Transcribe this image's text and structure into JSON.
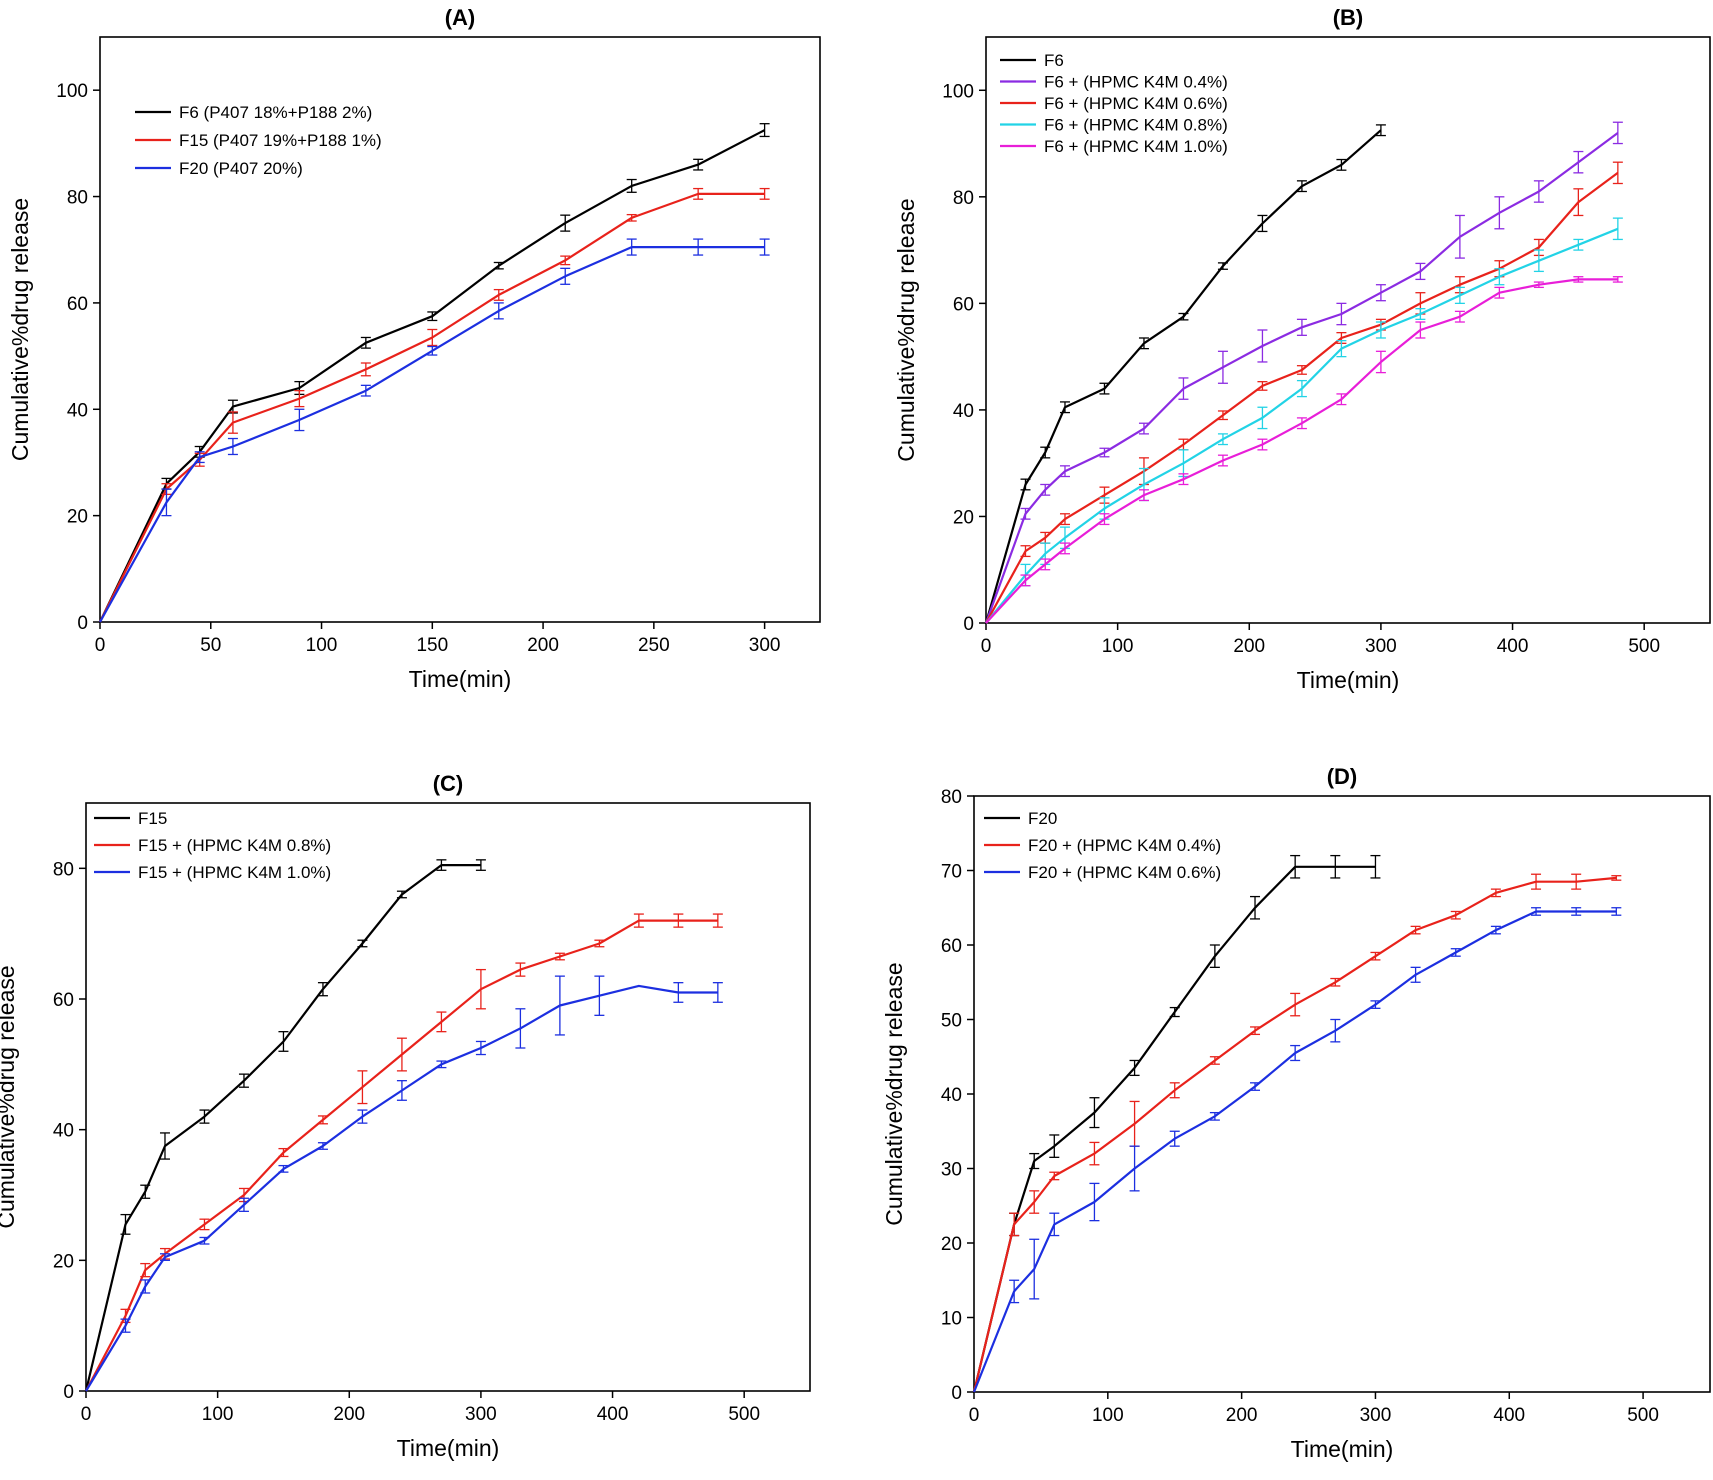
{
  "chart_data": [
    {
      "type": "line",
      "title": "(A)",
      "xlabel": "Time(min)",
      "ylabel": "Cumulative%drug release",
      "xlim": [
        0,
        325
      ],
      "ylim": [
        0,
        110
      ],
      "xticks": [
        0,
        50,
        100,
        150,
        200,
        250,
        300
      ],
      "yticks": [
        0,
        20,
        40,
        60,
        80,
        100
      ],
      "x_tick_labels": [
        "0",
        "50",
        "100",
        "150",
        "200",
        "250",
        "300"
      ],
      "y_tick_labels": [
        "0",
        "20",
        "40",
        "60",
        "80",
        "100"
      ],
      "legend_position": "top-left",
      "series": [
        {
          "name": "F6 (P407 18%+P188 2%)",
          "color": "#000000",
          "x": [
            0,
            30,
            45,
            60,
            90,
            120,
            150,
            180,
            210,
            240,
            270,
            300
          ],
          "y": [
            0,
            26,
            32,
            40.5,
            44,
            52.5,
            57.5,
            67,
            75,
            82,
            86,
            92.5
          ],
          "err": [
            0,
            1.0,
            1.0,
            1.2,
            1.2,
            1.0,
            0.8,
            0.6,
            1.5,
            1.2,
            1.0,
            1.2
          ]
        },
        {
          "name": "F15 (P407 19%+P188 1%)",
          "color": "#e8221b",
          "x": [
            0,
            30,
            45,
            60,
            90,
            120,
            150,
            180,
            210,
            240,
            270,
            300
          ],
          "y": [
            0,
            25,
            30.5,
            37.5,
            42,
            47.5,
            53.5,
            61.5,
            68,
            76,
            80.5,
            80.5
          ],
          "err": [
            0,
            1.0,
            1.2,
            2.0,
            1.5,
            1.2,
            1.5,
            1.0,
            0.8,
            0.6,
            1.0,
            1.0
          ]
        },
        {
          "name": "F20 (P407 20%)",
          "color": "#1c2fe0",
          "x": [
            0,
            30,
            45,
            60,
            90,
            120,
            150,
            180,
            210,
            240,
            270,
            300
          ],
          "y": [
            0,
            22.5,
            31,
            33,
            38,
            43.5,
            51,
            58.5,
            65,
            70.5,
            70.5,
            70.5
          ],
          "err": [
            0,
            2.5,
            1.0,
            1.5,
            2.0,
            1.0,
            0.8,
            1.5,
            1.5,
            1.5,
            1.5,
            1.5
          ]
        }
      ]
    },
    {
      "type": "line",
      "title": "(B)",
      "xlabel": "Time(min)",
      "ylabel": "Cumulative%drug release",
      "xlim": [
        0,
        550
      ],
      "ylim": [
        0,
        110
      ],
      "xticks": [
        0,
        100,
        200,
        300,
        400,
        500
      ],
      "yticks": [
        0,
        20,
        40,
        60,
        80,
        100
      ],
      "x_tick_labels": [
        "0",
        "100",
        "200",
        "300",
        "400",
        "500"
      ],
      "y_tick_labels": [
        "0",
        "20",
        "40",
        "60",
        "80",
        "100"
      ],
      "legend_position": "top-left",
      "series": [
        {
          "name": "F6",
          "color": "#000000",
          "x": [
            0,
            30,
            45,
            60,
            90,
            120,
            150,
            180,
            210,
            240,
            270,
            300
          ],
          "y": [
            0,
            26,
            32,
            40.5,
            44,
            52.5,
            57.5,
            67,
            75,
            82,
            86,
            92.5
          ],
          "err": [
            0,
            1.0,
            1.0,
            1.0,
            1.0,
            1.0,
            0.6,
            0.6,
            1.5,
            1.0,
            1.0,
            1.0
          ]
        },
        {
          "name": "F6 + (HPMC K4M 0.4%)",
          "color": "#8b2be2",
          "x": [
            0,
            30,
            45,
            60,
            90,
            120,
            150,
            180,
            210,
            240,
            270,
            300,
            330,
            360,
            390,
            420,
            450,
            480
          ],
          "y": [
            0,
            20.5,
            25,
            28.5,
            32,
            36.5,
            44,
            48,
            52,
            55.5,
            58,
            62,
            66,
            72.5,
            77,
            81,
            86.5,
            92
          ],
          "err": [
            0,
            1.0,
            1.0,
            1.0,
            0.8,
            1.0,
            2.0,
            3.0,
            3.0,
            1.5,
            2.0,
            1.5,
            1.5,
            4.0,
            3.0,
            2.0,
            2.0,
            2.0
          ]
        },
        {
          "name": "F6 + (HPMC K4M 0.6%)",
          "color": "#e8221b",
          "x": [
            0,
            30,
            45,
            60,
            90,
            120,
            150,
            180,
            210,
            240,
            270,
            300,
            330,
            360,
            390,
            420,
            450,
            480
          ],
          "y": [
            0,
            13.5,
            16,
            19.5,
            24,
            28.5,
            33.5,
            39,
            44.5,
            47.5,
            53.5,
            56,
            60,
            63.5,
            66.5,
            70.5,
            79,
            84.5
          ],
          "err": [
            0,
            1.0,
            1.0,
            1.0,
            1.5,
            2.5,
            1.0,
            0.8,
            0.8,
            0.8,
            1.0,
            1.0,
            2.0,
            1.5,
            1.5,
            1.5,
            2.5,
            2.0
          ]
        },
        {
          "name": "F6 + (HPMC K4M 0.8%)",
          "color": "#22d3e6",
          "x": [
            0,
            30,
            45,
            60,
            90,
            120,
            150,
            180,
            210,
            240,
            270,
            300,
            330,
            360,
            390,
            420,
            450,
            480
          ],
          "y": [
            0,
            9,
            13,
            16,
            21.5,
            26,
            30,
            34.5,
            38.5,
            44,
            51.5,
            55,
            58,
            61.5,
            65,
            68,
            71,
            74
          ],
          "err": [
            0,
            2.0,
            2.0,
            2.0,
            2.0,
            3.0,
            2.5,
            1.0,
            2.0,
            1.5,
            1.5,
            1.5,
            1.0,
            1.5,
            1.5,
            2.0,
            1.0,
            2.0
          ]
        },
        {
          "name": "F6 + (HPMC K4M 1.0%)",
          "color": "#e81ed8",
          "x": [
            0,
            30,
            45,
            60,
            90,
            120,
            150,
            180,
            210,
            240,
            270,
            300,
            330,
            360,
            390,
            420,
            450,
            480
          ],
          "y": [
            0,
            8,
            11,
            14,
            19.5,
            24,
            27,
            30.5,
            33.5,
            37.5,
            42,
            49,
            55,
            57.5,
            62,
            63.5,
            64.5,
            64.5
          ],
          "err": [
            0,
            1.0,
            1.0,
            1.0,
            1.0,
            1.0,
            1.0,
            1.0,
            1.0,
            1.0,
            1.0,
            2.0,
            1.5,
            1.0,
            1.0,
            0.5,
            0.5,
            0.5
          ]
        }
      ]
    },
    {
      "type": "line",
      "title": "(C)",
      "xlabel": "Time(min)",
      "ylabel": "Cumulative%drug release",
      "xlim": [
        0,
        550
      ],
      "ylim": [
        0,
        90
      ],
      "xticks": [
        0,
        100,
        200,
        300,
        400,
        500
      ],
      "yticks": [
        0,
        20,
        40,
        60,
        80
      ],
      "x_tick_labels": [
        "0",
        "100",
        "200",
        "300",
        "400",
        "500"
      ],
      "y_tick_labels": [
        "0",
        "20",
        "40",
        "60",
        "80"
      ],
      "legend_position": "top-left",
      "series": [
        {
          "name": "F15",
          "color": "#000000",
          "x": [
            0,
            30,
            45,
            60,
            90,
            120,
            150,
            180,
            210,
            240,
            270,
            300
          ],
          "y": [
            0,
            25.5,
            30.5,
            37.5,
            42,
            47.5,
            53.5,
            61.5,
            68.5,
            76,
            80.5,
            80.5
          ],
          "err": [
            0,
            1.5,
            1.0,
            2.0,
            1.0,
            1.0,
            1.5,
            1.0,
            0.5,
            0.5,
            0.8,
            0.8
          ]
        },
        {
          "name": "F15 + (HPMC K4M 0.8%)",
          "color": "#e8221b",
          "x": [
            0,
            30,
            45,
            60,
            90,
            120,
            150,
            180,
            210,
            240,
            270,
            300,
            330,
            360,
            390,
            420,
            450,
            480
          ],
          "y": [
            0,
            11.5,
            18.5,
            21,
            25.5,
            30,
            36.5,
            41.5,
            46.5,
            51.5,
            56.5,
            61.5,
            64.5,
            66.5,
            68.5,
            72,
            72,
            72
          ],
          "err": [
            0,
            1.0,
            1.0,
            0.8,
            0.8,
            1.0,
            0.6,
            0.6,
            2.5,
            2.5,
            1.5,
            3.0,
            1.0,
            0.5,
            0.5,
            1.0,
            1.0,
            1.0
          ]
        },
        {
          "name": "F15 + (HPMC K4M 1.0%)",
          "color": "#1c2fe0",
          "x": [
            0,
            30,
            45,
            60,
            90,
            120,
            150,
            180,
            210,
            240,
            270,
            300,
            330,
            360,
            390,
            420,
            450,
            480
          ],
          "y": [
            0,
            10,
            16,
            20.5,
            23,
            28.5,
            34,
            37.5,
            42,
            46,
            50,
            52.5,
            55.5,
            59,
            60.5,
            62,
            61,
            61
          ],
          "err": [
            0,
            1.0,
            1.0,
            0.5,
            0.5,
            1.0,
            0.5,
            0.5,
            1.0,
            1.5,
            0.5,
            1.0,
            3.0,
            4.5,
            3.0,
            0,
            1.5,
            1.5
          ]
        }
      ]
    },
    {
      "type": "line",
      "title": "(D)",
      "xlabel": "Time(min)",
      "ylabel": "Cumulative%drug release",
      "xlim": [
        0,
        550
      ],
      "ylim": [
        0,
        80
      ],
      "xticks": [
        0,
        100,
        200,
        300,
        400,
        500
      ],
      "yticks": [
        0,
        10,
        20,
        30,
        40,
        50,
        60,
        70,
        80
      ],
      "x_tick_labels": [
        "0",
        "100",
        "200",
        "300",
        "400",
        "500"
      ],
      "y_tick_labels": [
        "0",
        "10",
        "20",
        "30",
        "40",
        "50",
        "60",
        "70",
        "80"
      ],
      "legend_position": "top-left",
      "series": [
        {
          "name": "F20",
          "color": "#000000",
          "x": [
            0,
            30,
            45,
            60,
            90,
            120,
            150,
            180,
            210,
            240,
            270,
            300
          ],
          "y": [
            0,
            22.5,
            31,
            33,
            37.5,
            43.5,
            51,
            58.5,
            65,
            70.5,
            70.5,
            70.5
          ],
          "err": [
            0,
            1.5,
            1.0,
            1.5,
            2.0,
            1.0,
            0.6,
            1.5,
            1.5,
            1.5,
            1.5,
            1.5
          ]
        },
        {
          "name": "F20 + (HPMC K4M 0.4%)",
          "color": "#e8221b",
          "x": [
            0,
            30,
            45,
            60,
            90,
            120,
            150,
            180,
            210,
            240,
            270,
            300,
            330,
            360,
            390,
            420,
            450,
            480
          ],
          "y": [
            0,
            22.5,
            25.5,
            29,
            32,
            36,
            40.5,
            44.5,
            48.5,
            52,
            55,
            58.5,
            62,
            64,
            67,
            68.5,
            68.5,
            69
          ],
          "err": [
            0,
            1.5,
            1.5,
            0.5,
            1.5,
            3.0,
            1.0,
            0.5,
            0.5,
            1.5,
            0.5,
            0.5,
            0.5,
            0.5,
            0.5,
            1.0,
            1.0,
            0.3
          ]
        },
        {
          "name": "F20 + (HPMC K4M 0.6%)",
          "color": "#1c2fe0",
          "x": [
            0,
            30,
            45,
            60,
            90,
            120,
            150,
            180,
            210,
            240,
            270,
            300,
            330,
            360,
            390,
            420,
            450,
            480
          ],
          "y": [
            0,
            13.5,
            16.5,
            22.5,
            25.5,
            30,
            34,
            37,
            41,
            45.5,
            48.5,
            52,
            56,
            59,
            62,
            64.5,
            64.5,
            64.5
          ],
          "err": [
            0,
            1.5,
            4.0,
            1.5,
            2.5,
            3.0,
            1.0,
            0.5,
            0.5,
            1.0,
            1.5,
            0.5,
            1.0,
            0.5,
            0.5,
            0.5,
            0.5,
            0.5
          ]
        }
      ]
    }
  ]
}
